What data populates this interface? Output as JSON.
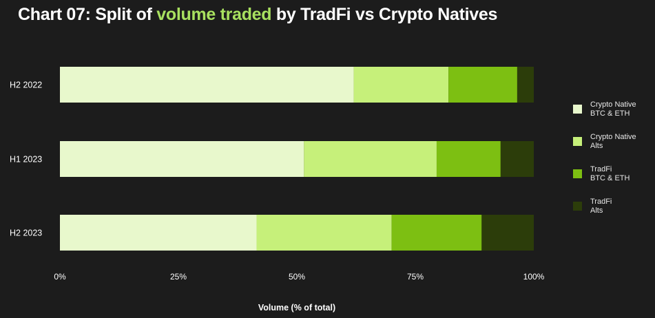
{
  "title": {
    "prefix": "Chart 07: Split of ",
    "highlight": "volume traded",
    "suffix": " by TradFi vs Crypto Natives"
  },
  "colors": {
    "background": "#1c1c1c",
    "title_highlight": "#a8e05f"
  },
  "chart_data": {
    "type": "bar",
    "orientation": "horizontal",
    "stacked": true,
    "categories": [
      "H2 2022",
      "H1 2023",
      "H2 2023"
    ],
    "series": [
      {
        "name": "Crypto Native\nBTC & ETH",
        "color": "#e8f8cc",
        "values": [
          62,
          51.5,
          41.5
        ]
      },
      {
        "name": "Crypto Native\nAlts",
        "color": "#c6f07a",
        "values": [
          20,
          28,
          28.5
        ]
      },
      {
        "name": "TradFi\nBTC & ETH",
        "color": "#7dbf12",
        "values": [
          14.5,
          13.5,
          19
        ]
      },
      {
        "name": "TradFi\nAlts",
        "color": "#2c3d0a",
        "values": [
          3.5,
          7,
          11
        ]
      }
    ],
    "xlabel": "Volume (% of total)",
    "xlim": [
      0,
      100
    ],
    "xticks": [
      "0%",
      "25%",
      "50%",
      "75%",
      "100%"
    ],
    "grid": false,
    "legend_position": "right"
  }
}
